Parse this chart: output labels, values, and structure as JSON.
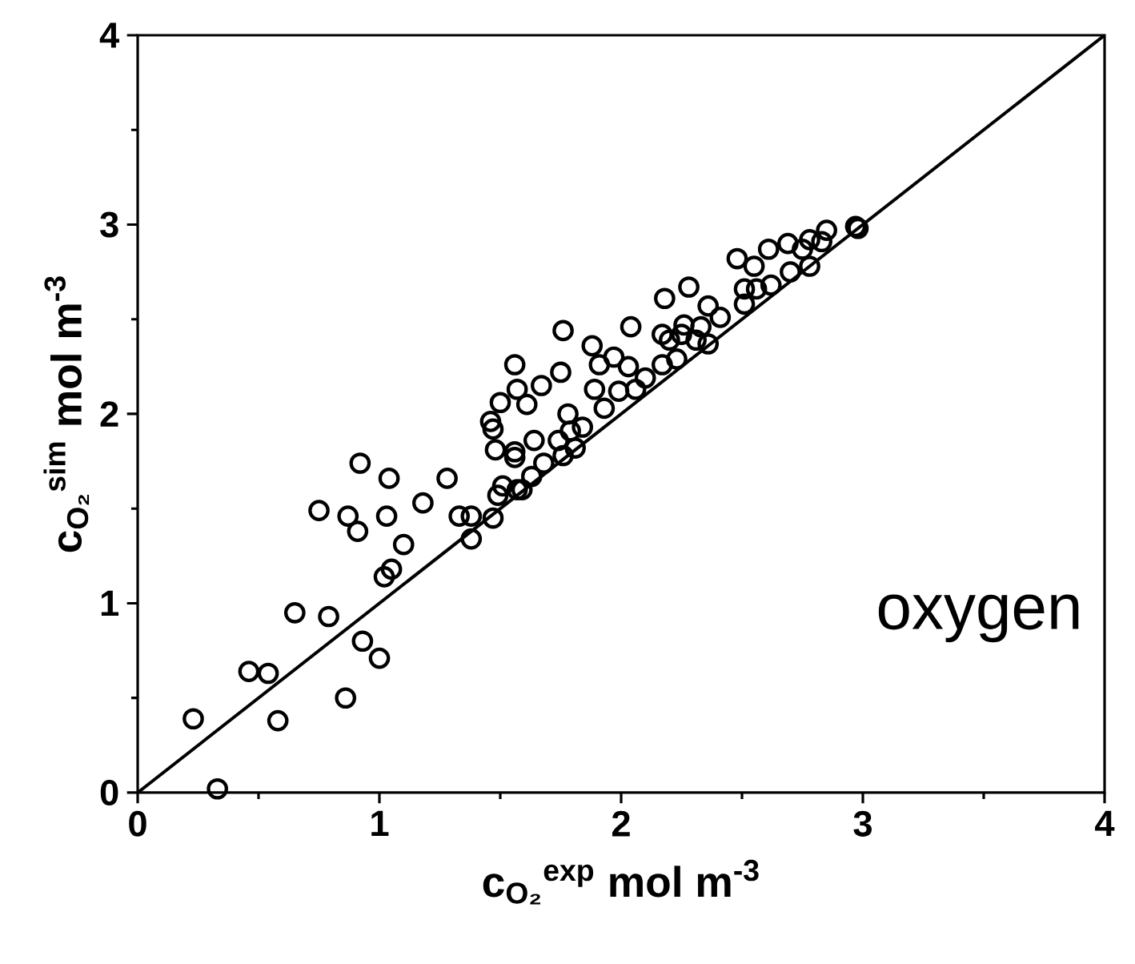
{
  "chart_data": {
    "type": "scatter",
    "xlabel": "c$_{O₂}$$^{exp}$ mol m$^{-3}$",
    "ylabel": "c$_{O₂}$$^{sim}$ mol m$^{-3}$",
    "xlim": [
      0,
      4
    ],
    "ylim": [
      0,
      4
    ],
    "xticks": [
      0,
      1,
      2,
      3,
      4
    ],
    "yticks": [
      0,
      1,
      2,
      3,
      4
    ],
    "grid": false,
    "annotations": [
      "oxygen"
    ],
    "series": [
      {
        "color": "#000000",
        "marker": "circle",
        "x": [
          0.23,
          0.33,
          0.46,
          0.54,
          0.58,
          0.65,
          0.79,
          0.86,
          0.93,
          1.0,
          0.75,
          0.87,
          0.91,
          0.92,
          1.04,
          1.03,
          1.1,
          1.02,
          1.05,
          1.18,
          1.28,
          1.33,
          1.38,
          1.38,
          1.47,
          1.49,
          1.48,
          1.56,
          1.51,
          1.57,
          1.46,
          1.47,
          1.5,
          1.56,
          1.57,
          1.61,
          1.67,
          1.76,
          1.75,
          1.78,
          1.64,
          1.56,
          1.59,
          1.63,
          1.68,
          1.74,
          1.79,
          1.81,
          1.76,
          1.84,
          1.88,
          1.89,
          1.91,
          1.93,
          1.97,
          1.99,
          2.03,
          2.04,
          2.06,
          2.1,
          2.17,
          2.18,
          2.2,
          2.17,
          2.23,
          2.25,
          2.28,
          2.26,
          2.31,
          2.33,
          2.36,
          2.36,
          2.41,
          2.48,
          2.51,
          2.51,
          2.55,
          2.56,
          2.61,
          2.62,
          2.69,
          2.7,
          2.75,
          2.78,
          2.78,
          2.83,
          2.85,
          2.97,
          2.98
        ],
        "values": [
          0.39,
          0.02,
          0.64,
          0.63,
          0.38,
          0.95,
          0.93,
          0.5,
          0.8,
          0.71,
          1.49,
          1.46,
          1.38,
          1.74,
          1.66,
          1.46,
          1.31,
          1.14,
          1.18,
          1.53,
          1.66,
          1.46,
          1.46,
          1.34,
          1.45,
          1.57,
          1.81,
          1.8,
          1.62,
          1.6,
          1.96,
          1.92,
          2.06,
          2.26,
          2.13,
          2.05,
          2.15,
          2.44,
          2.22,
          2.0,
          1.86,
          1.77,
          1.6,
          1.67,
          1.74,
          1.86,
          1.91,
          1.82,
          1.78,
          1.93,
          2.36,
          2.13,
          2.26,
          2.03,
          2.3,
          2.12,
          2.25,
          2.46,
          2.13,
          2.19,
          2.42,
          2.61,
          2.39,
          2.26,
          2.29,
          2.42,
          2.67,
          2.47,
          2.39,
          2.46,
          2.57,
          2.37,
          2.51,
          2.82,
          2.66,
          2.58,
          2.78,
          2.66,
          2.87,
          2.68,
          2.9,
          2.75,
          2.87,
          2.78,
          2.92,
          2.91,
          2.97,
          2.99,
          2.98
        ]
      },
      {
        "type": "line",
        "color": "#000000",
        "marker": "none",
        "line_style": "solid",
        "x": [
          0,
          4
        ],
        "values": [
          0,
          4
        ]
      }
    ]
  }
}
